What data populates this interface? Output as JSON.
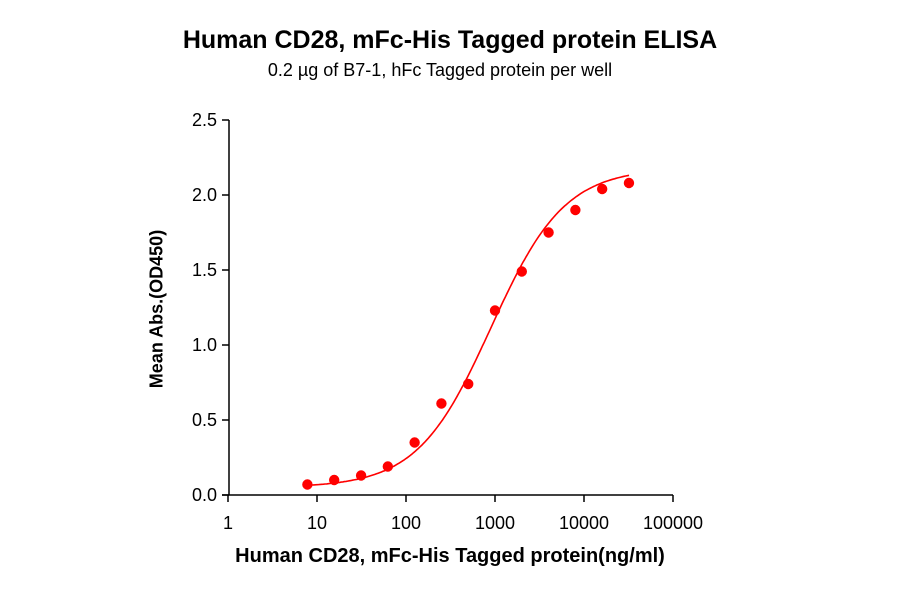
{
  "chart_data": {
    "type": "scatter",
    "title": "Human CD28, mFc-His Tagged protein ELISA",
    "subtitle": "0.2 µg of B7-1, hFc Tagged protein per well",
    "xlabel": "Human CD28, mFc-His Tagged protein(ng/ml)",
    "ylabel": "Mean Abs.(OD450)",
    "xscale": "log",
    "xlim": [
      1,
      100000
    ],
    "ylim": [
      0.0,
      2.5
    ],
    "xticks": [
      "1",
      "10",
      "100",
      "1000",
      "10000",
      "100000"
    ],
    "yticks": [
      "0.0",
      "0.5",
      "1.0",
      "1.5",
      "2.0",
      "2.5"
    ],
    "grid": false,
    "legend": null,
    "series": [
      {
        "name": "Human CD28, mFc-His Tagged protein",
        "color": "#ff0000",
        "fit": "4-parameter logistic curve",
        "x": [
          7.8,
          15.6,
          31.3,
          62.5,
          125,
          250,
          500,
          1000,
          2000,
          4000,
          8000,
          16000,
          32000
        ],
        "y": [
          0.07,
          0.1,
          0.13,
          0.19,
          0.35,
          0.61,
          0.74,
          1.23,
          1.49,
          1.75,
          1.9,
          2.04,
          2.08
        ]
      }
    ]
  }
}
